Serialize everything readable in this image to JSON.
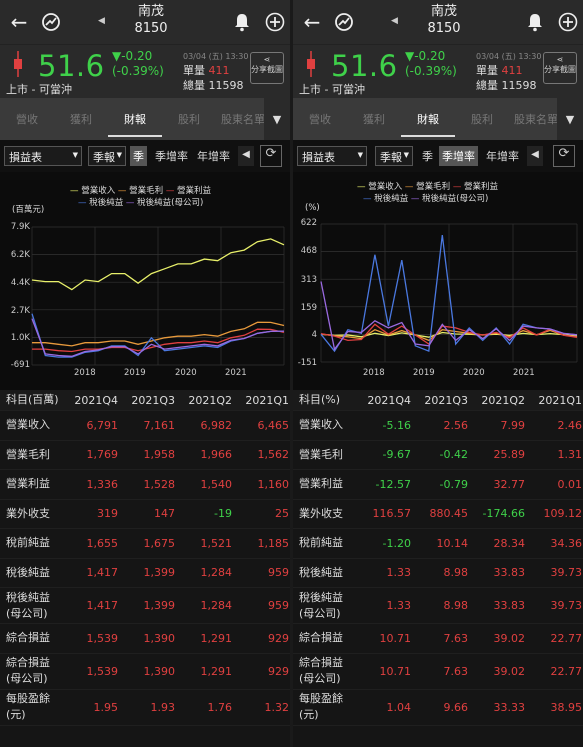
{
  "app": {
    "stock_name": "南茂",
    "stock_code": "8150",
    "share_label": "分享截圖"
  },
  "quote": {
    "price": "51.6",
    "change": "▼-0.20",
    "change_pct": "(-0.39%)",
    "date": "03/04 (五) 13:30",
    "lot_label": "單量",
    "lot_value": "411",
    "vol_label": "總量",
    "vol_value": "11598",
    "market": "上市 - 可當沖"
  },
  "tabs": [
    "營收",
    "獲利",
    "財報",
    "股利",
    "股東名單"
  ],
  "active_tab": "財報",
  "left": {
    "controls": {
      "report": "損益表",
      "period": "季報",
      "b1": "季",
      "b2": "季增率",
      "b3": "年增率"
    },
    "legend": [
      "營業收入",
      "營業毛利",
      "營業利益",
      "稅後純益",
      "稅後純益(母公司)"
    ],
    "unit": "(百萬元)",
    "yticks": [
      "7.9K",
      "6.2K",
      "4.4K",
      "2.7K",
      "1.0K",
      "-691"
    ],
    "xticks": [
      "2018",
      "2019",
      "2020",
      "2021"
    ],
    "header": [
      "科目(百萬)",
      "2021Q4",
      "2021Q3",
      "2021Q2",
      "2021Q1"
    ],
    "rows": [
      {
        "label": "營業收入",
        "values": [
          "6,791",
          "7,161",
          "6,982",
          "6,465"
        ]
      },
      {
        "label": "營業毛利",
        "values": [
          "1,769",
          "1,958",
          "1,966",
          "1,562"
        ]
      },
      {
        "label": "營業利益",
        "values": [
          "1,336",
          "1,528",
          "1,540",
          "1,160"
        ]
      },
      {
        "label": "業外收支",
        "values": [
          "319",
          "147",
          "-19",
          "25"
        ]
      },
      {
        "label": "稅前純益",
        "values": [
          "1,655",
          "1,675",
          "1,521",
          "1,185"
        ]
      },
      {
        "label": "稅後純益",
        "values": [
          "1,417",
          "1,399",
          "1,284",
          "959"
        ]
      },
      {
        "label": "稅後純益(母公司)",
        "values": [
          "1,417",
          "1,399",
          "1,284",
          "959"
        ]
      },
      {
        "label": "綜合損益",
        "values": [
          "1,539",
          "1,390",
          "1,291",
          "929"
        ]
      },
      {
        "label": "綜合損益(母公司)",
        "values": [
          "1,539",
          "1,390",
          "1,291",
          "929"
        ]
      },
      {
        "label": "每股盈餘(元)",
        "values": [
          "1.95",
          "1.93",
          "1.76",
          "1.32"
        ]
      }
    ]
  },
  "right": {
    "controls": {
      "report": "損益表",
      "period": "季報",
      "b1": "季",
      "b2": "季增率",
      "b3": "年增率"
    },
    "legend": [
      "營業收入",
      "營業毛利",
      "營業利益",
      "稅後純益",
      "稅後純益(母公司)"
    ],
    "unit": "(%)",
    "yticks": [
      "622",
      "468",
      "313",
      "159",
      "4",
      "-151"
    ],
    "xticks": [
      "2018",
      "2019",
      "2020",
      "2021"
    ],
    "header": [
      "科目(%)",
      "2021Q4",
      "2021Q3",
      "2021Q2",
      "2021Q1"
    ],
    "rows": [
      {
        "label": "營業收入",
        "values": [
          "-5.16",
          "2.56",
          "7.99",
          "2.46"
        ]
      },
      {
        "label": "營業毛利",
        "values": [
          "-9.67",
          "-0.42",
          "25.89",
          "1.31"
        ]
      },
      {
        "label": "營業利益",
        "values": [
          "-12.57",
          "-0.79",
          "32.77",
          "0.01"
        ]
      },
      {
        "label": "業外收支",
        "values": [
          "116.57",
          "880.45",
          "-174.66",
          "109.12"
        ]
      },
      {
        "label": "稅前純益",
        "values": [
          "-1.20",
          "10.14",
          "28.34",
          "34.36"
        ]
      },
      {
        "label": "稅後純益",
        "values": [
          "1.33",
          "8.98",
          "33.83",
          "39.73"
        ]
      },
      {
        "label": "稅後純益(母公司)",
        "values": [
          "1.33",
          "8.98",
          "33.83",
          "39.73"
        ]
      },
      {
        "label": "綜合損益",
        "values": [
          "10.71",
          "7.63",
          "39.02",
          "22.77"
        ]
      },
      {
        "label": "綜合損益(母公司)",
        "values": [
          "10.71",
          "7.63",
          "39.02",
          "22.77"
        ]
      },
      {
        "label": "每股盈餘(元)",
        "values": [
          "1.04",
          "9.66",
          "33.33",
          "38.95"
        ]
      }
    ]
  },
  "chart_data": [
    {
      "type": "line",
      "ylabel": "(百萬元)",
      "ylim": [
        -691,
        7900
      ],
      "x": [
        "2017Q1",
        "2017Q2",
        "2017Q3",
        "2017Q4",
        "2018Q1",
        "2018Q2",
        "2018Q3",
        "2018Q4",
        "2019Q1",
        "2019Q2",
        "2019Q3",
        "2019Q4",
        "2020Q1",
        "2020Q2",
        "2020Q3",
        "2020Q4",
        "2021Q1",
        "2021Q2",
        "2021Q3",
        "2021Q4"
      ],
      "series": [
        {
          "name": "營業收入",
          "color": "#e8f06a",
          "values": [
            4600,
            4500,
            4500,
            4000,
            4600,
            4500,
            5000,
            5000,
            4400,
            5000,
            5300,
            5600,
            5600,
            5900,
            5800,
            6300,
            6465,
            6982,
            7161,
            6791
          ]
        },
        {
          "name": "營業毛利",
          "color": "#e89a3c",
          "values": [
            700,
            700,
            600,
            500,
            700,
            700,
            800,
            800,
            600,
            800,
            1000,
            1100,
            1100,
            1200,
            1100,
            1400,
            1562,
            1966,
            1958,
            1769
          ]
        },
        {
          "name": "營業利益",
          "color": "#e04040",
          "values": [
            300,
            300,
            200,
            150,
            300,
            300,
            400,
            400,
            200,
            400,
            600,
            700,
            700,
            800,
            700,
            1000,
            1160,
            1540,
            1528,
            1336
          ]
        },
        {
          "name": "稅後純益",
          "color": "#4a78e0",
          "values": [
            2500,
            -100,
            -200,
            -200,
            100,
            200,
            500,
            500,
            -100,
            1000,
            200,
            300,
            400,
            500,
            400,
            800,
            959,
            1284,
            1399,
            1417
          ]
        },
        {
          "name": "稅後純益(母公司)",
          "color": "#9a6ae0",
          "values": [
            2200,
            0,
            -100,
            -150,
            150,
            250,
            450,
            450,
            0,
            600,
            300,
            400,
            500,
            600,
            500,
            850,
            959,
            1284,
            1399,
            1417
          ]
        }
      ]
    },
    {
      "type": "line",
      "ylabel": "(%)",
      "ylim": [
        -151,
        622
      ],
      "x": [
        "2017Q1",
        "2017Q2",
        "2017Q3",
        "2017Q4",
        "2018Q1",
        "2018Q2",
        "2018Q3",
        "2018Q4",
        "2019Q1",
        "2019Q2",
        "2019Q3",
        "2019Q4",
        "2020Q1",
        "2020Q2",
        "2020Q3",
        "2020Q4",
        "2021Q1",
        "2021Q2",
        "2021Q3",
        "2021Q4"
      ],
      "series": [
        {
          "name": "營業收入",
          "color": "#e8f06a",
          "values": [
            4,
            -2,
            0,
            -10,
            10,
            -3,
            12,
            0,
            -12,
            14,
            6,
            5,
            0,
            5,
            -2,
            9,
            2.46,
            7.99,
            2.56,
            -5.16
          ]
        },
        {
          "name": "營業毛利",
          "color": "#e89a3c",
          "values": [
            6,
            -4,
            -10,
            -20,
            30,
            0,
            25,
            0,
            -30,
            30,
            20,
            10,
            0,
            10,
            -10,
            25,
            1.31,
            25.89,
            -0.42,
            -9.67
          ]
        },
        {
          "name": "營業利益",
          "color": "#e04040",
          "values": [
            8,
            -6,
            -30,
            -25,
            60,
            5,
            50,
            0,
            -50,
            50,
            40,
            15,
            0,
            15,
            -15,
            40,
            0.01,
            32.77,
            -0.79,
            -12.57
          ]
        },
        {
          "name": "稅後純益",
          "color": "#4a78e0",
          "values": [
            4,
            -90,
            30,
            10,
            450,
            50,
            420,
            -60,
            -90,
            560,
            -50,
            40,
            -30,
            40,
            -50,
            60,
            39.73,
            33.83,
            8.98,
            1.33
          ]
        },
        {
          "name": "稅後純益(母公司)",
          "color": "#9a6ae0",
          "values": [
            300,
            -80,
            20,
            15,
            80,
            40,
            70,
            -50,
            -60,
            60,
            -30,
            30,
            -20,
            35,
            -30,
            50,
            39.73,
            33.83,
            8.98,
            1.33
          ]
        }
      ]
    }
  ]
}
